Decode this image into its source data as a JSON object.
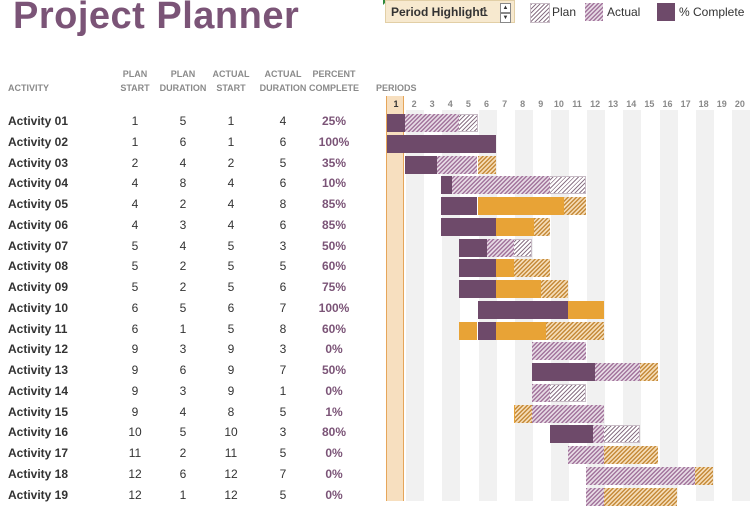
{
  "title": "Project Planner",
  "period_highlight": {
    "label": "Period Highlight:",
    "value": "1"
  },
  "legend": {
    "plan": "Plan",
    "actual": "Actual",
    "complete": "% Complete"
  },
  "colors": {
    "title": "#7b5477",
    "complete": "#6e4a6a",
    "actual": "#a3759d",
    "overflow": "#e8a336",
    "highlight": "#f7dfbf"
  },
  "headers": {
    "activity": "ACTIVITY",
    "plan_start": [
      "PLAN",
      "START"
    ],
    "plan_duration": [
      "PLAN",
      "DURATION"
    ],
    "actual_start": [
      "ACTUAL",
      "START"
    ],
    "actual_duration": [
      "ACTUAL",
      "DURATION"
    ],
    "percent_complete": [
      "PERCENT",
      "COMPLETE"
    ],
    "periods": "PERIODS"
  },
  "periods": [
    "1",
    "2",
    "3",
    "4",
    "5",
    "6",
    "7",
    "8",
    "9",
    "10",
    "11",
    "12",
    "13",
    "14",
    "15",
    "16",
    "17",
    "18",
    "19",
    "20"
  ],
  "activities": [
    {
      "name": "Activity 01",
      "plan_start": "1",
      "plan_duration": "5",
      "actual_start": "1",
      "actual_duration": "4",
      "percent": "25%"
    },
    {
      "name": "Activity 02",
      "plan_start": "1",
      "plan_duration": "6",
      "actual_start": "1",
      "actual_duration": "6",
      "percent": "100%"
    },
    {
      "name": "Activity 03",
      "plan_start": "2",
      "plan_duration": "4",
      "actual_start": "2",
      "actual_duration": "5",
      "percent": "35%"
    },
    {
      "name": "Activity 04",
      "plan_start": "4",
      "plan_duration": "8",
      "actual_start": "4",
      "actual_duration": "6",
      "percent": "10%"
    },
    {
      "name": "Activity 05",
      "plan_start": "4",
      "plan_duration": "2",
      "actual_start": "4",
      "actual_duration": "8",
      "percent": "85%"
    },
    {
      "name": "Activity 06",
      "plan_start": "4",
      "plan_duration": "3",
      "actual_start": "4",
      "actual_duration": "6",
      "percent": "85%"
    },
    {
      "name": "Activity 07",
      "plan_start": "5",
      "plan_duration": "4",
      "actual_start": "5",
      "actual_duration": "3",
      "percent": "50%"
    },
    {
      "name": "Activity 08",
      "plan_start": "5",
      "plan_duration": "2",
      "actual_start": "5",
      "actual_duration": "5",
      "percent": "60%"
    },
    {
      "name": "Activity 09",
      "plan_start": "5",
      "plan_duration": "2",
      "actual_start": "5",
      "actual_duration": "6",
      "percent": "75%"
    },
    {
      "name": "Activity 10",
      "plan_start": "6",
      "plan_duration": "5",
      "actual_start": "6",
      "actual_duration": "7",
      "percent": "100%"
    },
    {
      "name": "Activity 11",
      "plan_start": "6",
      "plan_duration": "1",
      "actual_start": "5",
      "actual_duration": "8",
      "percent": "60%"
    },
    {
      "name": "Activity 12",
      "plan_start": "9",
      "plan_duration": "3",
      "actual_start": "9",
      "actual_duration": "3",
      "percent": "0%"
    },
    {
      "name": "Activity 13",
      "plan_start": "9",
      "plan_duration": "6",
      "actual_start": "9",
      "actual_duration": "7",
      "percent": "50%"
    },
    {
      "name": "Activity 14",
      "plan_start": "9",
      "plan_duration": "3",
      "actual_start": "9",
      "actual_duration": "1",
      "percent": "0%"
    },
    {
      "name": "Activity 15",
      "plan_start": "9",
      "plan_duration": "4",
      "actual_start": "8",
      "actual_duration": "5",
      "percent": "1%"
    },
    {
      "name": "Activity 16",
      "plan_start": "10",
      "plan_duration": "5",
      "actual_start": "10",
      "actual_duration": "3",
      "percent": "80%"
    },
    {
      "name": "Activity 17",
      "plan_start": "11",
      "plan_duration": "2",
      "actual_start": "11",
      "actual_duration": "5",
      "percent": "0%"
    },
    {
      "name": "Activity 18",
      "plan_start": "12",
      "plan_duration": "6",
      "actual_start": "12",
      "actual_duration": "7",
      "percent": "0%"
    },
    {
      "name": "Activity 19",
      "plan_start": "12",
      "plan_duration": "1",
      "actual_start": "12",
      "actual_duration": "5",
      "percent": "0%"
    }
  ]
}
